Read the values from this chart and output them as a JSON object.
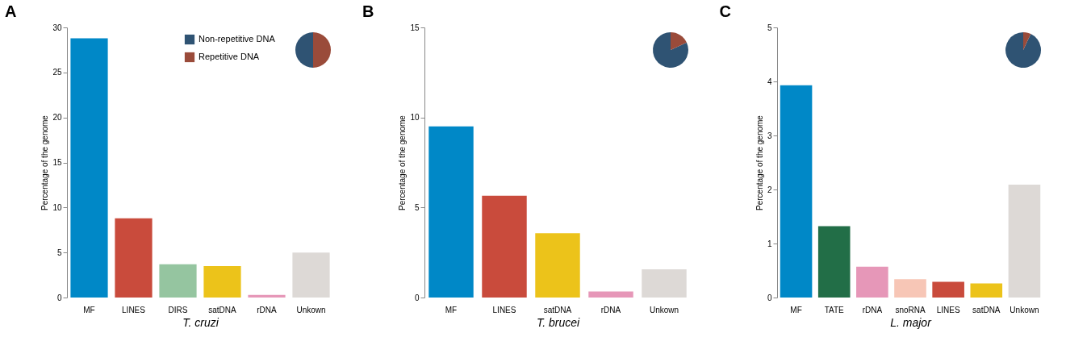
{
  "chart_data": [
    {
      "type": "bar",
      "title": "A",
      "xlabel": "T. cruzi",
      "ylabel": "Percentage of the genome",
      "categories": [
        "MF",
        "LINES",
        "DIRS",
        "satDNA",
        "rDNA",
        "Unkown"
      ],
      "values": [
        28.8,
        8.8,
        3.7,
        3.5,
        0.3,
        5.0
      ],
      "colors": [
        "#0088c7",
        "#c94b3c",
        "#95c5a0",
        "#ecc31a",
        "#e697b8",
        "#ddd9d6"
      ],
      "ylim": [
        0,
        30
      ],
      "yticks": [
        0,
        5,
        10,
        15,
        20,
        25,
        30
      ],
      "grid": false
    },
    {
      "type": "pie",
      "categories": [
        "Non-repetitive DNA",
        "Repetitive DNA"
      ],
      "values": [
        50,
        50
      ],
      "colors": [
        "#2f5373",
        "#9a4b3a"
      ],
      "legend": "left"
    },
    {
      "type": "bar",
      "title": "B",
      "xlabel": "T. brucei",
      "ylabel": "Percentage of the genome",
      "categories": [
        "MF",
        "LINES",
        "satDNA",
        "rDNA",
        "Unkown"
      ],
      "values": [
        9.5,
        5.65,
        3.57,
        0.34,
        1.57
      ],
      "colors": [
        "#0088c7",
        "#c94b3c",
        "#ecc31a",
        "#e697b8",
        "#ddd9d6"
      ],
      "ylim": [
        0,
        15
      ],
      "yticks": [
        0,
        5,
        10,
        15
      ],
      "grid": false
    },
    {
      "type": "pie",
      "categories": [
        null,
        null
      ],
      "values": [
        82,
        18
      ],
      "colors": [
        "#2f5373",
        "#9a4b3a"
      ]
    },
    {
      "type": "bar",
      "title": "C",
      "xlabel": "L. major",
      "ylabel": "Percentage of the genome",
      "categories": [
        "MF",
        "TATE",
        "rDNA",
        "snoRNA",
        "LINES",
        "satDNA",
        "Unkown"
      ],
      "values": [
        3.93,
        1.32,
        0.57,
        0.34,
        0.29,
        0.26,
        2.09
      ],
      "colors": [
        "#0088c7",
        "#226e47",
        "#e697b8",
        "#f7c6b6",
        "#c94b3c",
        "#ecc31a",
        "#ddd9d6"
      ],
      "ylim": [
        0,
        5
      ],
      "yticks": [
        0,
        1,
        2,
        3,
        4,
        5
      ],
      "grid": false
    },
    {
      "type": "pie",
      "categories": [
        null,
        null
      ],
      "values": [
        93,
        7
      ],
      "colors": [
        "#2f5373",
        "#9a4b3a"
      ]
    }
  ]
}
